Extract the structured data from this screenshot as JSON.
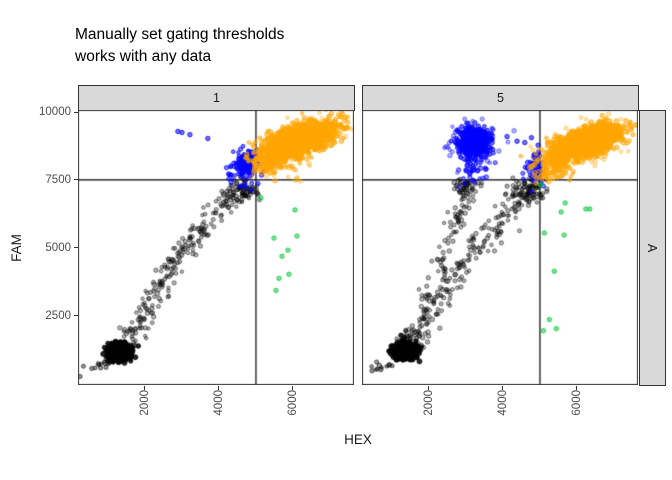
{
  "title": {
    "line1": "Manually set gating thresholds",
    "line2": "works with any data"
  },
  "chart_data": {
    "type": "scatter",
    "xlabel": "HEX",
    "ylabel": "FAM",
    "x_ticks": [
      2000,
      4000,
      6000
    ],
    "y_ticks": [
      2500,
      5000,
      7500,
      10000
    ],
    "x_range": [
      190,
      7650
    ],
    "y_range": [
      -60,
      10080
    ],
    "thresholds": {
      "x": 5000,
      "y": 7500
    },
    "facet_row_label": "A",
    "legend": "none",
    "grid": "off",
    "colors": {
      "black": "#000000",
      "gray": "#000000",
      "blue": "#0000FF",
      "orange": "#FFA500",
      "green": "#00C832",
      "strip_fill": "#D9D9D9",
      "panel_border": "#333333",
      "threshold_line": "#000000"
    },
    "facets": [
      {
        "label": "1",
        "clusters": [
          {
            "kind": "trail",
            "color": "gray",
            "alpha": 0.4,
            "n": 18,
            "sdx": 110,
            "sdy": 110,
            "path": [
              [
                480,
                330
              ],
              [
                1150,
                980
              ]
            ]
          },
          {
            "kind": "trail",
            "color": "gray",
            "alpha": 0.3,
            "n": 235,
            "sdx": 170,
            "sdy": 230,
            "path": [
              [
                1350,
                1250
              ],
              [
                2050,
                2750
              ],
              [
                2900,
                4650
              ],
              [
                3800,
                6150
              ],
              [
                4650,
                7200
              ]
            ]
          },
          {
            "kind": "gauss",
            "color": "gray",
            "alpha": 0.32,
            "n": 55,
            "cx": 4650,
            "cy": 7100,
            "sdx": 240,
            "sdy": 230
          },
          {
            "kind": "gauss",
            "color": "black",
            "alpha": 0.85,
            "n": 550,
            "cx": 1310,
            "cy": 1160,
            "sdx": 150,
            "sdy": 150,
            "r": 2.2
          },
          {
            "kind": "gauss",
            "color": "blue",
            "alpha": 0.5,
            "n": 130,
            "cx": 4790,
            "cy": 8030,
            "sdx": 170,
            "sdy": 300
          },
          {
            "kind": "trail",
            "color": "blue",
            "alpha": 0.5,
            "n": 35,
            "sdx": 160,
            "sdy": 200,
            "path": [
              [
                4350,
                7550
              ],
              [
                4950,
                8550
              ]
            ]
          },
          {
            "kind": "points",
            "color": "blue",
            "alpha": 0.55,
            "pts": [
              [
                2890,
                9290
              ],
              [
                3000,
                9250
              ],
              [
                3215,
                9170
              ],
              [
                3700,
                9030
              ]
            ]
          },
          {
            "kind": "gauss",
            "color": "orange",
            "alpha": 0.28,
            "n": 130,
            "cx": 6150,
            "cy": 8900,
            "sdx": 650,
            "sdy": 450,
            "corr": 0.5
          },
          {
            "kind": "gauss",
            "color": "orange",
            "alpha": 0.5,
            "n": 1500,
            "cx": 6150,
            "cy": 8950,
            "sdx": 470,
            "sdy": 330,
            "corr": 0.6
          },
          {
            "kind": "gauss",
            "color": "orange",
            "alpha": 0.45,
            "n": 90,
            "cx": 5350,
            "cy": 8100,
            "sdx": 230,
            "sdy": 260
          },
          {
            "kind": "gauss",
            "color": "orange",
            "alpha": 0.3,
            "n": 25,
            "cx": 5750,
            "cy": 7850,
            "sdx": 350,
            "sdy": 200
          },
          {
            "kind": "points",
            "color": "orange",
            "alpha": 0.5,
            "pts": [
              [
                7310,
                8930
              ]
            ]
          },
          {
            "kind": "points",
            "color": "green",
            "alpha": 0.5,
            "pts": [
              [
                5135,
                6840
              ],
              [
                6054,
                6395
              ],
              [
                5487,
                5357
              ],
              [
                6108,
                5431
              ],
              [
                5703,
                4689
              ],
              [
                5865,
                4912
              ],
              [
                5892,
                4021
              ],
              [
                5622,
                3873
              ],
              [
                5541,
                3428
              ]
            ]
          }
        ]
      },
      {
        "label": "5",
        "clusters": [
          {
            "kind": "trail",
            "color": "gray",
            "alpha": 0.4,
            "n": 15,
            "sdx": 110,
            "sdy": 110,
            "path": [
              [
                520,
                380
              ],
              [
                1200,
                1020
              ]
            ]
          },
          {
            "kind": "trail",
            "color": "gray",
            "alpha": 0.3,
            "n": 195,
            "sdx": 170,
            "sdy": 230,
            "path": [
              [
                1450,
                1300
              ],
              [
                2350,
                3100
              ],
              [
                3250,
                4950
              ],
              [
                4150,
                6350
              ],
              [
                4950,
                7380
              ]
            ]
          },
          {
            "kind": "trail",
            "color": "gray",
            "alpha": 0.3,
            "n": 125,
            "sdx": 140,
            "sdy": 210,
            "path": [
              [
                1450,
                1350
              ],
              [
                1950,
                2900
              ],
              [
                2400,
                4500
              ],
              [
                2750,
                5950
              ],
              [
                2980,
                7050
              ]
            ]
          },
          {
            "kind": "gauss",
            "color": "gray",
            "alpha": 0.32,
            "n": 40,
            "cx": 3050,
            "cy": 7250,
            "sdx": 200,
            "sdy": 170
          },
          {
            "kind": "gauss",
            "color": "gray",
            "alpha": 0.32,
            "n": 60,
            "cx": 4650,
            "cy": 7100,
            "sdx": 240,
            "sdy": 220
          },
          {
            "kind": "gauss",
            "color": "black",
            "alpha": 0.85,
            "n": 550,
            "cx": 1370,
            "cy": 1190,
            "sdx": 150,
            "sdy": 140,
            "r": 2.2
          },
          {
            "kind": "gauss",
            "color": "blue",
            "alpha": 0.3,
            "n": 120,
            "cx": 3220,
            "cy": 8850,
            "sdx": 300,
            "sdy": 400
          },
          {
            "kind": "gauss",
            "color": "blue",
            "alpha": 0.55,
            "n": 650,
            "cx": 3220,
            "cy": 8900,
            "sdx": 200,
            "sdy": 250
          },
          {
            "kind": "trail",
            "color": "blue",
            "alpha": 0.45,
            "n": 45,
            "sdx": 180,
            "sdy": 250,
            "path": [
              [
                3000,
                7600
              ],
              [
                3400,
                8400
              ]
            ]
          },
          {
            "kind": "gauss",
            "color": "blue",
            "alpha": 0.5,
            "n": 55,
            "cx": 4880,
            "cy": 8000,
            "sdx": 130,
            "sdy": 280
          },
          {
            "kind": "points",
            "color": "blue",
            "alpha": 0.55,
            "pts": [
              [
                3700,
                9180
              ],
              [
                4110,
                9100
              ],
              [
                4380,
                8930
              ],
              [
                4590,
                8880
              ],
              [
                4770,
                9060
              ],
              [
                4950,
                8780
              ]
            ]
          },
          {
            "kind": "gauss",
            "color": "orange",
            "alpha": 0.28,
            "n": 130,
            "cx": 6250,
            "cy": 8830,
            "sdx": 650,
            "sdy": 440,
            "corr": 0.5
          },
          {
            "kind": "gauss",
            "color": "orange",
            "alpha": 0.5,
            "n": 1500,
            "cx": 6250,
            "cy": 8880,
            "sdx": 470,
            "sdy": 320,
            "corr": 0.6
          },
          {
            "kind": "gauss",
            "color": "orange",
            "alpha": 0.45,
            "n": 90,
            "cx": 5420,
            "cy": 8000,
            "sdx": 240,
            "sdy": 250
          },
          {
            "kind": "gauss",
            "color": "orange",
            "alpha": 0.4,
            "n": 25,
            "cx": 5150,
            "cy": 7700,
            "sdx": 120,
            "sdy": 150
          },
          {
            "kind": "points",
            "color": "green",
            "alpha": 0.5,
            "pts": [
              [
                5014,
                7323
              ],
              [
                5680,
                6655
              ],
              [
                5573,
                6321
              ],
              [
                6240,
                6432
              ],
              [
                6347,
                6432
              ],
              [
                5120,
                5542
              ],
              [
                5654,
                5468
              ],
              [
                5387,
                4132
              ],
              [
                5254,
                2352
              ],
              [
                5441,
                2018
              ],
              [
                5094,
                1943
              ]
            ]
          }
        ]
      }
    ]
  }
}
